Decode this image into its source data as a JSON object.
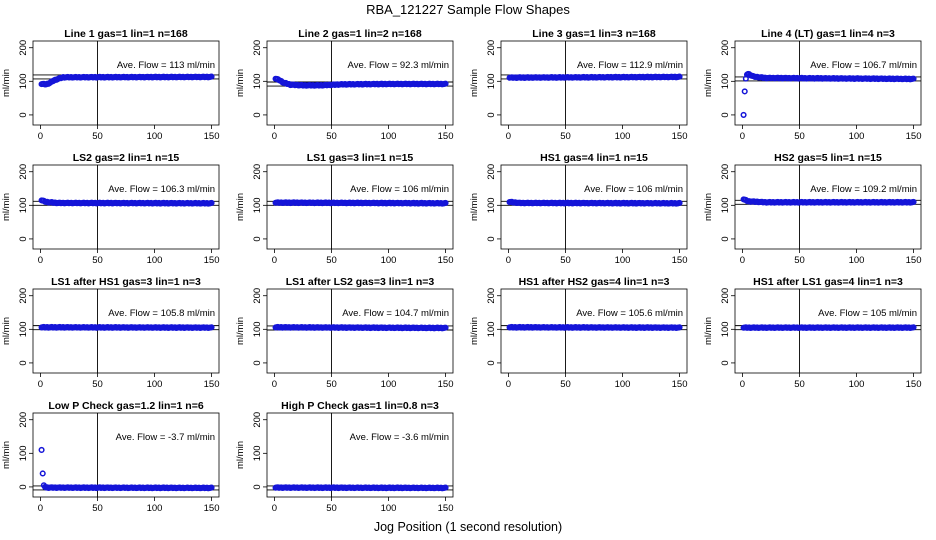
{
  "figure": {
    "title": "RBA_121227  Sample Flow Shapes",
    "xlabel": "Jog Position (1 second resolution)"
  },
  "style": {
    "point_color": "#1515d8",
    "axis_color": "#000000"
  },
  "chart_data": [
    {
      "type": "scatter",
      "title": "Line 1 gas=1 lin=1 n=168",
      "ylabel": "ml/min",
      "xlim": [
        0,
        150
      ],
      "ylim": [
        -20,
        210
      ],
      "xticks": [
        0,
        50,
        100,
        150
      ],
      "yticks": [
        0,
        100,
        200
      ],
      "vline": 50,
      "avg_label": "Ave. Flow =  113  ml/min",
      "series": [
        {
          "shape": "curve",
          "points": [
            [
              1,
              92
            ],
            [
              5,
              91
            ],
            [
              8,
              95
            ],
            [
              12,
              103
            ],
            [
              16,
              108
            ],
            [
              20,
              112
            ],
            [
              150,
              113
            ]
          ]
        }
      ]
    },
    {
      "type": "scatter",
      "title": "Line 2 gas=1 lin=2 n=168",
      "ylabel": "ml/min",
      "xlim": [
        0,
        150
      ],
      "ylim": [
        -20,
        210
      ],
      "xticks": [
        0,
        50,
        100,
        150
      ],
      "yticks": [
        0,
        100,
        200
      ],
      "vline": 50,
      "avg_label": "Ave. Flow =  92.3  ml/min",
      "series": [
        {
          "shape": "curve",
          "points": [
            [
              1,
              108
            ],
            [
              4,
              104
            ],
            [
              8,
              96
            ],
            [
              14,
              90
            ],
            [
              25,
              88
            ],
            [
              40,
              88
            ],
            [
              60,
              91
            ],
            [
              100,
              92
            ],
            [
              150,
              92
            ]
          ]
        }
      ]
    },
    {
      "type": "scatter",
      "title": "Line 3 gas=1 lin=3 n=168",
      "ylabel": "ml/min",
      "xlim": [
        0,
        150
      ],
      "ylim": [
        -20,
        210
      ],
      "xticks": [
        0,
        50,
        100,
        150
      ],
      "yticks": [
        0,
        100,
        200
      ],
      "vline": 50,
      "avg_label": "Ave. Flow =  112.9  ml/min",
      "series": [
        {
          "shape": "curve",
          "points": [
            [
              1,
              111
            ],
            [
              150,
              113
            ]
          ]
        }
      ]
    },
    {
      "type": "scatter",
      "title": "Line 4 (LT) gas=1 lin=4 n=3",
      "ylabel": "ml/min",
      "xlim": [
        0,
        150
      ],
      "ylim": [
        -20,
        210
      ],
      "xticks": [
        0,
        50,
        100,
        150
      ],
      "yticks": [
        0,
        100,
        200
      ],
      "vline": 50,
      "avg_label": "Ave. Flow =  106.7  ml/min",
      "series": [
        {
          "shape": "curve",
          "points": [
            [
              5,
              122
            ],
            [
              10,
              114
            ],
            [
              20,
              110
            ],
            [
              150,
              107
            ]
          ],
          "extra": [
            [
              1,
              0
            ],
            [
              2,
              70
            ],
            [
              3,
              108
            ],
            [
              4,
              120
            ]
          ]
        }
      ]
    },
    {
      "type": "scatter",
      "title": "LS2 gas=2 lin=1 n=15",
      "ylabel": "ml/min",
      "xlim": [
        0,
        150
      ],
      "ylim": [
        -20,
        210
      ],
      "xticks": [
        0,
        50,
        100,
        150
      ],
      "yticks": [
        0,
        100,
        200
      ],
      "vline": 50,
      "avg_label": "Ave. Flow =  106.3  ml/min",
      "series": [
        {
          "shape": "curve",
          "points": [
            [
              1,
              115
            ],
            [
              5,
              110
            ],
            [
              15,
              107
            ],
            [
              150,
              106
            ]
          ]
        }
      ]
    },
    {
      "type": "scatter",
      "title": "LS1 gas=3 lin=1 n=15",
      "ylabel": "ml/min",
      "xlim": [
        0,
        150
      ],
      "ylim": [
        -20,
        210
      ],
      "xticks": [
        0,
        50,
        100,
        150
      ],
      "yticks": [
        0,
        100,
        200
      ],
      "vline": 50,
      "avg_label": "Ave. Flow =  106  ml/min",
      "series": [
        {
          "shape": "curve",
          "points": [
            [
              1,
              108
            ],
            [
              150,
              106
            ]
          ]
        }
      ]
    },
    {
      "type": "scatter",
      "title": "HS1 gas=4 lin=1 n=15",
      "ylabel": "ml/min",
      "xlim": [
        0,
        150
      ],
      "ylim": [
        -20,
        210
      ],
      "xticks": [
        0,
        50,
        100,
        150
      ],
      "yticks": [
        0,
        100,
        200
      ],
      "vline": 50,
      "avg_label": "Ave. Flow =  106  ml/min",
      "series": [
        {
          "shape": "curve",
          "points": [
            [
              1,
              110
            ],
            [
              10,
              107
            ],
            [
              150,
              106
            ]
          ]
        }
      ]
    },
    {
      "type": "scatter",
      "title": "HS2 gas=5 lin=1 n=15",
      "ylabel": "ml/min",
      "xlim": [
        0,
        150
      ],
      "ylim": [
        -20,
        210
      ],
      "xticks": [
        0,
        50,
        100,
        150
      ],
      "yticks": [
        0,
        100,
        200
      ],
      "vline": 50,
      "avg_label": "Ave. Flow =  109.2  ml/min",
      "series": [
        {
          "shape": "curve",
          "points": [
            [
              1,
              118
            ],
            [
              5,
              112
            ],
            [
              20,
              109
            ],
            [
              150,
              109
            ]
          ]
        }
      ]
    },
    {
      "type": "scatter",
      "title": "LS1 after HS1 gas=3 lin=1 n=3",
      "ylabel": "ml/min",
      "xlim": [
        0,
        150
      ],
      "ylim": [
        -20,
        210
      ],
      "xticks": [
        0,
        50,
        100,
        150
      ],
      "yticks": [
        0,
        100,
        200
      ],
      "vline": 50,
      "avg_label": "Ave. Flow =  105.8  ml/min",
      "series": [
        {
          "shape": "curve",
          "points": [
            [
              1,
              106
            ],
            [
              150,
              105
            ]
          ]
        }
      ]
    },
    {
      "type": "scatter",
      "title": "LS1 after LS2 gas=3 lin=1 n=3",
      "ylabel": "ml/min",
      "xlim": [
        0,
        150
      ],
      "ylim": [
        -20,
        210
      ],
      "xticks": [
        0,
        50,
        100,
        150
      ],
      "yticks": [
        0,
        100,
        200
      ],
      "vline": 50,
      "avg_label": "Ave. Flow =  104.7  ml/min",
      "series": [
        {
          "shape": "curve",
          "points": [
            [
              1,
              106
            ],
            [
              150,
              104
            ]
          ]
        }
      ]
    },
    {
      "type": "scatter",
      "title": "HS1 after HS2 gas=4 lin=1 n=3",
      "ylabel": "ml/min",
      "xlim": [
        0,
        150
      ],
      "ylim": [
        -20,
        210
      ],
      "xticks": [
        0,
        50,
        100,
        150
      ],
      "yticks": [
        0,
        100,
        200
      ],
      "vline": 50,
      "avg_label": "Ave. Flow =  105.6  ml/min",
      "series": [
        {
          "shape": "curve",
          "points": [
            [
              1,
              106
            ],
            [
              150,
              105
            ]
          ]
        }
      ]
    },
    {
      "type": "scatter",
      "title": "HS1 after LS1 gas=4 lin=1 n=3",
      "ylabel": "ml/min",
      "xlim": [
        0,
        150
      ],
      "ylim": [
        -20,
        210
      ],
      "xticks": [
        0,
        50,
        100,
        150
      ],
      "yticks": [
        0,
        100,
        200
      ],
      "vline": 50,
      "avg_label": "Ave. Flow =  105  ml/min",
      "series": [
        {
          "shape": "curve",
          "points": [
            [
              1,
              105
            ],
            [
              150,
              105
            ]
          ]
        }
      ]
    },
    {
      "type": "scatter",
      "title": "Low P Check gas=1.2 lin=1 n=6",
      "ylabel": "ml/min",
      "xlim": [
        0,
        150
      ],
      "ylim": [
        -20,
        210
      ],
      "xticks": [
        0,
        50,
        100,
        150
      ],
      "yticks": [
        0,
        100,
        200
      ],
      "vline": 50,
      "avg_label": "Ave. Flow =  -3.7  ml/min",
      "series": [
        {
          "shape": "curve",
          "points": [
            [
              5,
              -2
            ],
            [
              150,
              -3
            ]
          ],
          "extra": [
            [
              1,
              110
            ],
            [
              2,
              40
            ],
            [
              3,
              5
            ],
            [
              4,
              0
            ]
          ]
        }
      ]
    },
    {
      "type": "scatter",
      "title": "High P Check gas=1 lin=0.8 n=3",
      "ylabel": "ml/min",
      "xlim": [
        0,
        150
      ],
      "ylim": [
        -20,
        210
      ],
      "xticks": [
        0,
        50,
        100,
        150
      ],
      "yticks": [
        0,
        100,
        200
      ],
      "vline": 50,
      "avg_label": "Ave. Flow =  -3.6  ml/min",
      "series": [
        {
          "shape": "curve",
          "points": [
            [
              1,
              -2
            ],
            [
              150,
              -3
            ]
          ]
        }
      ]
    }
  ]
}
